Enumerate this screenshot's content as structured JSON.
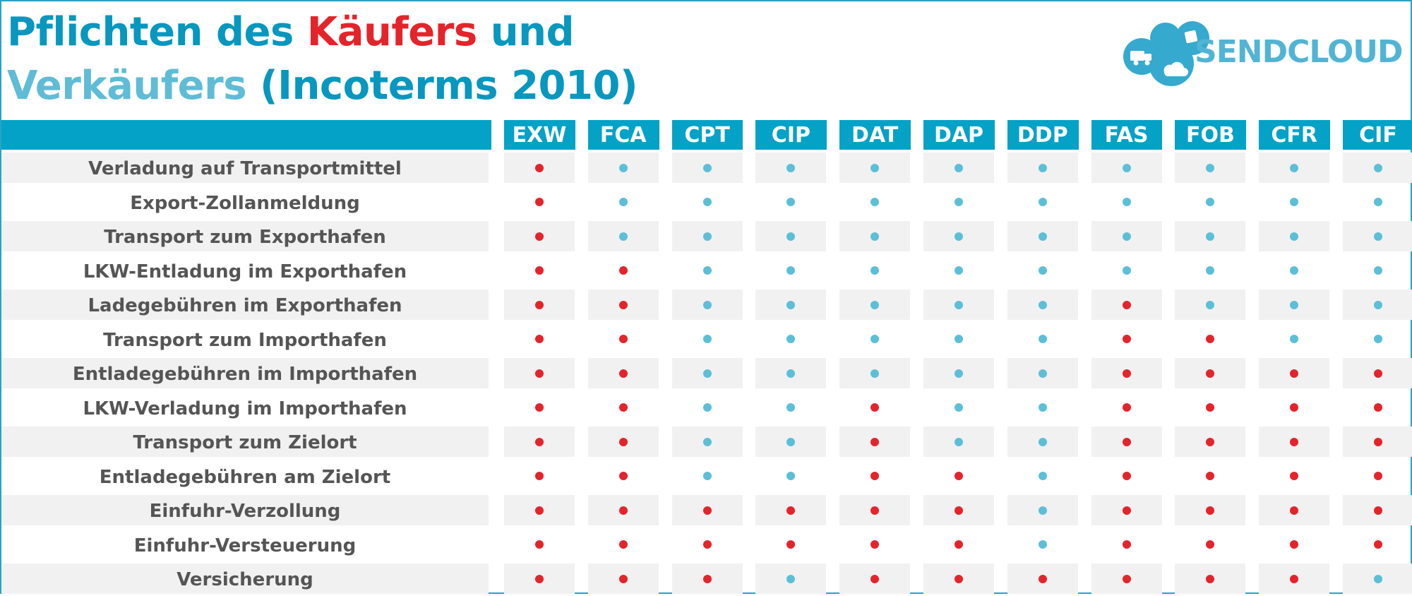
{
  "title": {
    "line1_part1": "Pflichten des ",
    "line1_part2": "Käufers",
    "line1_part3": " und",
    "line2_part1": "Verkäufers",
    "line2_part2": " (Incoterms 2010)"
  },
  "logo": {
    "text": "SENDCLOUD"
  },
  "colors": {
    "header_blue": "#03a2c6",
    "seller_red": "#e4242b",
    "buyer_blue": "#5cbfd8",
    "row_shade": "#f1f1f1"
  },
  "columns": [
    "EXW",
    "FCA",
    "CPT",
    "CIP",
    "DAT",
    "DAP",
    "DDP",
    "FAS",
    "FOB",
    "CFR",
    "CIF"
  ],
  "rows": [
    {
      "label": "Verladung auf Transportmittel",
      "cells": [
        "s",
        "b",
        "b",
        "b",
        "b",
        "b",
        "b",
        "b",
        "b",
        "b",
        "b"
      ]
    },
    {
      "label": "Export-Zollanmeldung",
      "cells": [
        "s",
        "b",
        "b",
        "b",
        "b",
        "b",
        "b",
        "b",
        "b",
        "b",
        "b"
      ]
    },
    {
      "label": "Transport zum Exporthafen",
      "cells": [
        "s",
        "b",
        "b",
        "b",
        "b",
        "b",
        "b",
        "b",
        "b",
        "b",
        "b"
      ]
    },
    {
      "label": "LKW-Entladung im Exporthafen",
      "cells": [
        "s",
        "s",
        "b",
        "b",
        "b",
        "b",
        "b",
        "b",
        "b",
        "b",
        "b"
      ]
    },
    {
      "label": "Ladegebühren im Exporthafen",
      "cells": [
        "s",
        "s",
        "b",
        "b",
        "b",
        "b",
        "b",
        "s",
        "b",
        "b",
        "b"
      ]
    },
    {
      "label": "Transport zum Importhafen",
      "cells": [
        "s",
        "s",
        "b",
        "b",
        "b",
        "b",
        "b",
        "s",
        "s",
        "b",
        "b"
      ]
    },
    {
      "label": "Entladegebühren im Importhafen",
      "cells": [
        "s",
        "s",
        "b",
        "b",
        "b",
        "b",
        "b",
        "s",
        "s",
        "s",
        "s"
      ]
    },
    {
      "label": "LKW-Verladung im Importhafen",
      "cells": [
        "s",
        "s",
        "b",
        "b",
        "s",
        "b",
        "b",
        "s",
        "s",
        "s",
        "s"
      ]
    },
    {
      "label": "Transport zum Zielort",
      "cells": [
        "s",
        "s",
        "b",
        "b",
        "s",
        "b",
        "b",
        "s",
        "s",
        "s",
        "s"
      ]
    },
    {
      "label": "Entladegebühren am Zielort",
      "cells": [
        "s",
        "s",
        "b",
        "b",
        "s",
        "s",
        "b",
        "s",
        "s",
        "s",
        "s"
      ]
    },
    {
      "label": "Einfuhr-Verzollung",
      "cells": [
        "s",
        "s",
        "s",
        "s",
        "s",
        "s",
        "b",
        "s",
        "s",
        "s",
        "s"
      ]
    },
    {
      "label": "Einfuhr-Versteuerung",
      "cells": [
        "s",
        "s",
        "s",
        "s",
        "s",
        "s",
        "b",
        "s",
        "s",
        "s",
        "s"
      ]
    },
    {
      "label": "Versicherung",
      "cells": [
        "s",
        "s",
        "s",
        "b",
        "s",
        "s",
        "s",
        "s",
        "s",
        "s",
        "b"
      ]
    }
  ]
}
